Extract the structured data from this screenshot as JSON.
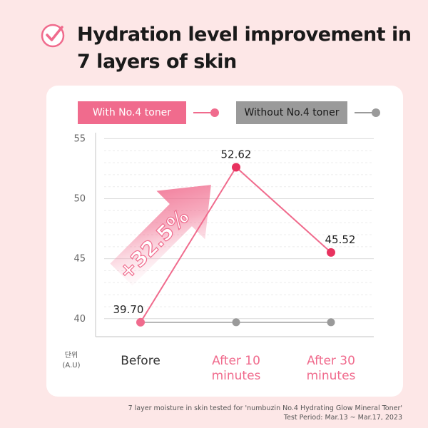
{
  "title": "Hydration level improvement in 7 layers of skin",
  "title_line1": "Hydration level improvement in",
  "title_line2": "7 layers of skin",
  "colors": {
    "accent": "#f06b8d",
    "accent_dark": "#e8325f",
    "gray": "#9a9a9a",
    "background": "#fde7e7"
  },
  "chart_data": {
    "type": "line",
    "categories": [
      "Before",
      "After 10 minutes",
      "After 30 minutes"
    ],
    "category_lines": [
      [
        "Before"
      ],
      [
        "After 10",
        "minutes"
      ],
      [
        "After 30",
        "minutes"
      ]
    ],
    "series": [
      {
        "name": "With No.4 toner",
        "values": [
          39.7,
          52.62,
          45.52
        ],
        "labels": [
          "39.70",
          "52.62",
          "45.52"
        ]
      },
      {
        "name": "Without No.4 toner",
        "values": [
          39.7,
          39.7,
          39.7
        ]
      }
    ],
    "ylim": [
      38.5,
      55.5
    ],
    "yticks": [
      40,
      45,
      50,
      55
    ],
    "ylabel_lines": [
      "단위",
      "(A.U)"
    ],
    "annotation": "+32.5%",
    "grid": true,
    "legend": "top"
  },
  "footnote_line1": "7 layer moisture in skin tested for 'numbuzin No.4 Hydrating Glow Mineral Toner'",
  "footnote_line2": "Test Period: Mar.13 ~ Mar.17, 2023"
}
